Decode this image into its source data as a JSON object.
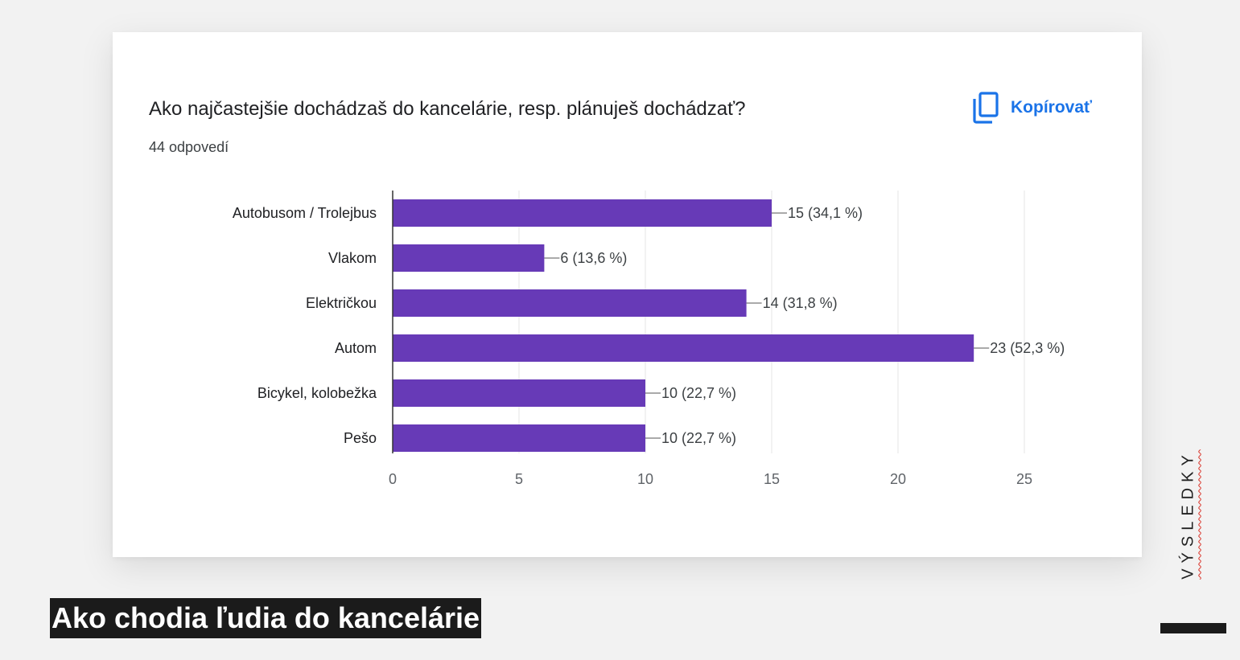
{
  "question": "Ako najčastejšie dochádzaš do kancelárie, resp. plánuješ dochádzať?",
  "responses": "44 odpovedí",
  "copy_button": {
    "label": "Kopírovať",
    "icon": "copy-icon"
  },
  "caption": "Ako chodia ľudia do kancelárie",
  "side_label": "VÝSLEDKY",
  "colors": {
    "bar": "#673ab7",
    "link": "#1a73e8",
    "axis": "#333333",
    "grid": "#e6e6e6"
  },
  "chart_data": {
    "type": "bar",
    "orientation": "horizontal",
    "categories": [
      "Autobusom / Trolejbus",
      "Vlakom",
      "Električkou",
      "Autom",
      "Bicykel, kolobežka",
      "Pešo"
    ],
    "values": [
      15,
      6,
      14,
      23,
      10,
      10
    ],
    "data_labels": [
      "15 (34,1 %)",
      "6 (13,6 %)",
      "14 (31,8 %)",
      "23 (52,3 %)",
      "10 (22,7 %)",
      "10 (22,7 %)"
    ],
    "xlim": [
      0,
      25
    ],
    "xticks": [
      0,
      5,
      10,
      15,
      20,
      25
    ],
    "grid": true
  }
}
